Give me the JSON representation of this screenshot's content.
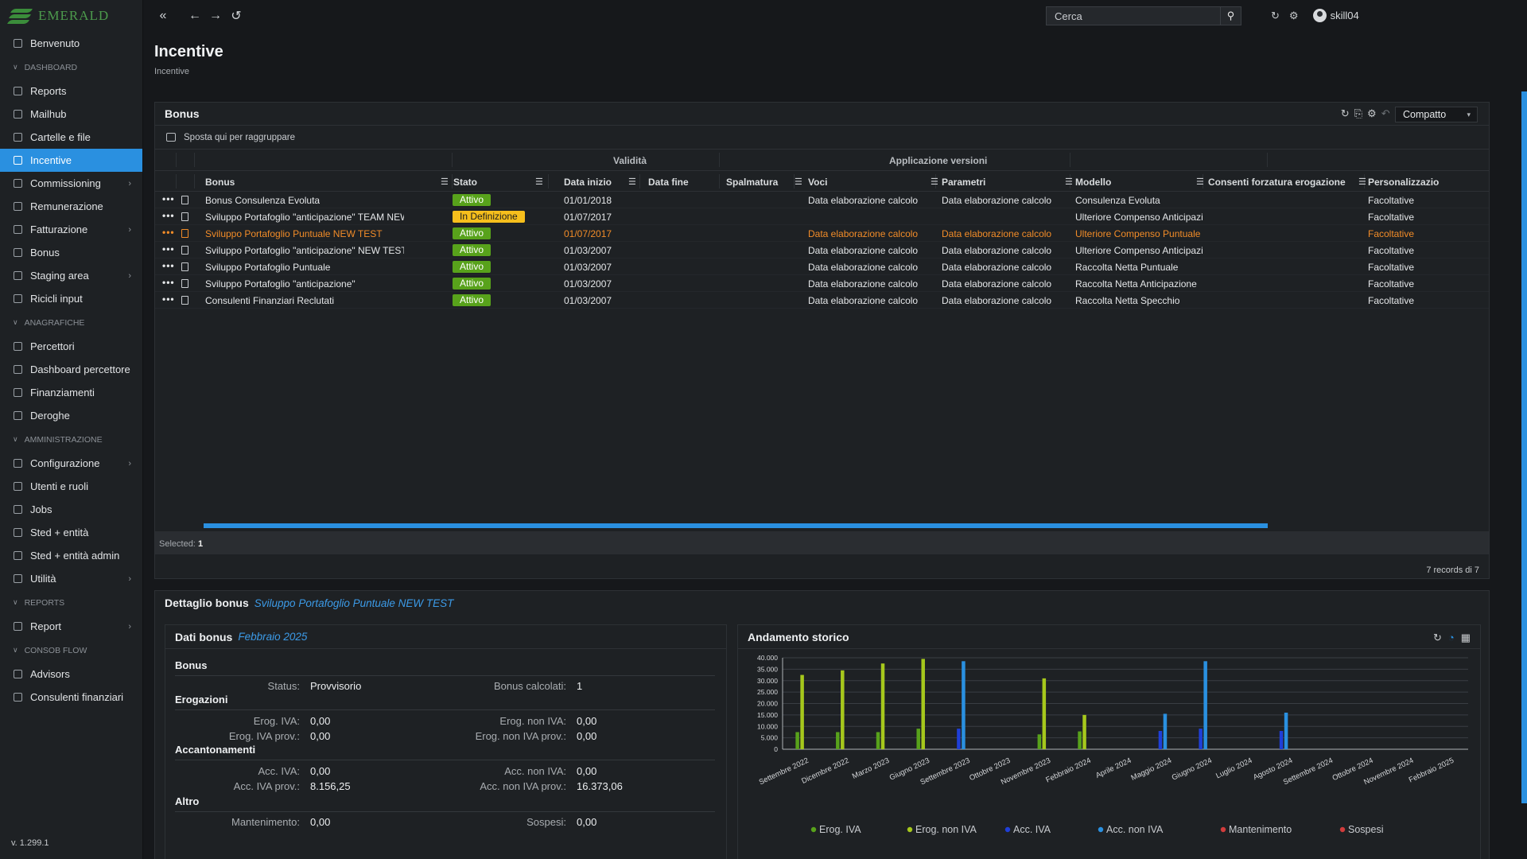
{
  "app": {
    "logo_text": "EMERALD",
    "version": "v. 1.299.1"
  },
  "topbar": {
    "search_placeholder": "Cerca",
    "user": "skill04"
  },
  "sidebar": {
    "items": [
      {
        "label": "Benvenuto",
        "icon": "dashboard-icon",
        "type": "item"
      },
      {
        "label": "DASHBOARD",
        "type": "section"
      },
      {
        "label": "Reports",
        "icon": "report-icon",
        "type": "item"
      },
      {
        "label": "Mailhub",
        "icon": "mail-icon",
        "type": "item"
      },
      {
        "label": "Cartelle e file",
        "icon": "folder-icon",
        "type": "item"
      },
      {
        "label": "Incentive",
        "icon": "incentive-icon",
        "type": "item",
        "active": true
      },
      {
        "label": "Commissioning",
        "icon": "commissioning-icon",
        "type": "item",
        "arrow": true
      },
      {
        "label": "Remunerazione",
        "icon": "money-icon",
        "type": "item"
      },
      {
        "label": "Fatturazione",
        "icon": "invoice-icon",
        "type": "item",
        "arrow": true
      },
      {
        "label": "Bonus",
        "icon": "bonus-icon",
        "type": "item"
      },
      {
        "label": "Staging area",
        "icon": "staging-icon",
        "type": "item",
        "arrow": true
      },
      {
        "label": "Ricicli input",
        "icon": "list-icon",
        "type": "item"
      },
      {
        "label": "ANAGRAFICHE",
        "type": "section"
      },
      {
        "label": "Percettori",
        "icon": "users-icon",
        "type": "item"
      },
      {
        "label": "Dashboard percettore",
        "icon": "users-icon",
        "type": "item"
      },
      {
        "label": "Finanziamenti",
        "icon": "finance-icon",
        "type": "item"
      },
      {
        "label": "Deroghe",
        "icon": "user-icon",
        "type": "item"
      },
      {
        "label": "AMMINISTRAZIONE",
        "type": "section"
      },
      {
        "label": "Configurazione",
        "icon": "wrench-icon",
        "type": "item",
        "arrow": true
      },
      {
        "label": "Utenti e ruoli",
        "icon": "user-icon",
        "type": "item"
      },
      {
        "label": "Jobs",
        "icon": "jobs-icon",
        "type": "item"
      },
      {
        "label": "Sted + entità",
        "icon": "database-icon",
        "type": "item"
      },
      {
        "label": "Sted + entità admin",
        "icon": "database-icon",
        "type": "item"
      },
      {
        "label": "Utilità",
        "icon": "file-icon",
        "type": "item",
        "arrow": true
      },
      {
        "label": "REPORTS",
        "type": "section"
      },
      {
        "label": "Report",
        "icon": "report-icon",
        "type": "item",
        "arrow": true
      },
      {
        "label": "CONSOB FLOW",
        "type": "section"
      },
      {
        "label": "Advisors",
        "icon": "double-chevron-icon",
        "type": "item"
      },
      {
        "label": "Consulenti finanziari",
        "icon": "double-chevron-icon",
        "type": "item"
      }
    ]
  },
  "page": {
    "title": "Incentive",
    "breadcrumb": "Incentive"
  },
  "bonus_panel": {
    "title": "Bonus",
    "view_mode": "Compatto",
    "group_hint": "Sposta qui per raggruppare",
    "column_groups": [
      "Validità",
      "Applicazione versioni"
    ],
    "columns": [
      "Bonus",
      "Stato",
      "Data inizio",
      "Data fine",
      "Spalmatura",
      "Voci",
      "Parametri",
      "Modello",
      "Consenti forzatura erogazione",
      "Personalizzazio"
    ],
    "rows": [
      {
        "bonus": "Bonus Consulenza Evoluta",
        "stato": "Attivo",
        "data_inizio": "01/01/2018",
        "voci": "Data elaborazione calcolo",
        "parametri": "Data elaborazione calcolo",
        "modello": "Consulenza Evoluta",
        "personalizzazione": "Facoltative"
      },
      {
        "bonus": "Sviluppo Portafoglio \"anticipazione\" TEAM NEW TEST",
        "stato": "In Definizione",
        "data_inizio": "01/07/2017",
        "voci": "",
        "parametri": "",
        "modello": "Ulteriore Compenso Anticipazione Team",
        "personalizzazione": "Facoltative"
      },
      {
        "bonus": "Sviluppo Portafoglio Puntuale NEW TEST",
        "stato": "Attivo",
        "data_inizio": "01/07/2017",
        "voci": "Data elaborazione calcolo",
        "parametri": "Data elaborazione calcolo",
        "modello": "Ulteriore Compenso Puntuale",
        "personalizzazione": "Facoltative",
        "selected": true
      },
      {
        "bonus": "Sviluppo Portafoglio \"anticipazione\" NEW TEST",
        "stato": "Attivo",
        "data_inizio": "01/03/2007",
        "voci": "Data elaborazione calcolo",
        "parametri": "Data elaborazione calcolo",
        "modello": "Ulteriore Compenso Anticipazione",
        "personalizzazione": "Facoltative"
      },
      {
        "bonus": "Sviluppo Portafoglio Puntuale",
        "stato": "Attivo",
        "data_inizio": "01/03/2007",
        "voci": "Data elaborazione calcolo",
        "parametri": "Data elaborazione calcolo",
        "modello": "Raccolta Netta Puntuale",
        "personalizzazione": "Facoltative"
      },
      {
        "bonus": "Sviluppo Portafoglio \"anticipazione\"",
        "stato": "Attivo",
        "data_inizio": "01/03/2007",
        "voci": "Data elaborazione calcolo",
        "parametri": "Data elaborazione calcolo",
        "modello": "Raccolta Netta Anticipazione",
        "personalizzazione": "Facoltative"
      },
      {
        "bonus": "Consulenti Finanziari Reclutati",
        "stato": "Attivo",
        "data_inizio": "01/03/2007",
        "voci": "Data elaborazione calcolo",
        "parametri": "Data elaborazione calcolo",
        "modello": "Raccolta Netta Specchio",
        "personalizzazione": "Facoltative"
      }
    ],
    "selected_label": "Selected:",
    "selected_count": "1",
    "records": "7 records di 7"
  },
  "detail": {
    "title": "Dettaglio bonus",
    "selected_bonus": "Sviluppo Portafoglio Puntuale NEW TEST",
    "dati": {
      "title": "Dati bonus",
      "period": "Febbraio 2025",
      "sections": {
        "bonus": "Bonus",
        "erogazioni": "Erogazioni",
        "accantonamenti": "Accantonamenti",
        "altro": "Altro"
      },
      "status_label": "Status:",
      "status": "Provvisorio",
      "calc_label": "Bonus calcolati:",
      "calc": "1",
      "erog_iva_label": "Erog. IVA:",
      "erog_iva": "0,00",
      "erog_noniva_label": "Erog. non IVA:",
      "erog_noniva": "0,00",
      "erog_iva_prov_label": "Erog. IVA prov.:",
      "erog_iva_prov": "0,00",
      "erog_noniva_prov_label": "Erog. non IVA prov.:",
      "erog_noniva_prov": "0,00",
      "acc_iva_label": "Acc. IVA:",
      "acc_iva": "0,00",
      "acc_noniva_label": "Acc. non IVA:",
      "acc_noniva": "0,00",
      "acc_iva_prov_label": "Acc. IVA prov.:",
      "acc_iva_prov": "8.156,25",
      "acc_noniva_prov_label": "Acc. non IVA prov.:",
      "acc_noniva_prov": "16.373,06",
      "mant_label": "Mantenimento:",
      "mant": "0,00",
      "sospesi_label": "Sospesi:",
      "sospesi": "0,00"
    },
    "chart_title": "Andamento storico"
  },
  "chart_data": {
    "type": "bar",
    "title": "Andamento storico",
    "categories": [
      "Settembre 2022",
      "Dicembre 2022",
      "Marzo 2023",
      "Giugno 2023",
      "Settembre 2023",
      "Ottobre 2023",
      "Novembre 2023",
      "Febbraio 2024",
      "Aprile 2024",
      "Maggio 2024",
      "Giugno 2024",
      "Luglio 2024",
      "Agosto 2024",
      "Settembre 2024",
      "Ottobre 2024",
      "Novembre 2024",
      "Febbraio 2025"
    ],
    "ylim": [
      0,
      40000
    ],
    "yticks": [
      "40.000",
      "35.000",
      "30.000",
      "25.000",
      "20.000",
      "15.000",
      "10.000",
      "5.000",
      "0"
    ],
    "series": [
      {
        "name": "Erog. IVA",
        "color": "#58a21b",
        "values": [
          7500,
          7500,
          7500,
          9000,
          0,
          0,
          6500,
          7800,
          0,
          0,
          0,
          0,
          0,
          0,
          0,
          0,
          0
        ]
      },
      {
        "name": "Erog. non IVA",
        "color": "#a6c81c",
        "values": [
          32500,
          34500,
          37500,
          39500,
          0,
          0,
          31000,
          15000,
          0,
          0,
          0,
          0,
          0,
          0,
          0,
          0,
          0
        ]
      },
      {
        "name": "Acc. IVA",
        "color": "#1f3fd8",
        "values": [
          0,
          0,
          0,
          0,
          9000,
          0,
          0,
          0,
          0,
          8000,
          9000,
          0,
          8000,
          0,
          0,
          0,
          0
        ]
      },
      {
        "name": "Acc. non IVA",
        "color": "#2a90e0",
        "values": [
          0,
          0,
          0,
          0,
          38500,
          0,
          0,
          0,
          0,
          15500,
          38500,
          0,
          16000,
          0,
          0,
          0,
          0
        ]
      },
      {
        "name": "Mantenimento",
        "color": "#d13c3c",
        "values": [
          0,
          0,
          0,
          0,
          0,
          0,
          0,
          0,
          0,
          0,
          0,
          0,
          0,
          0,
          0,
          0,
          0
        ]
      },
      {
        "name": "Sospesi",
        "color": "#d13c3c",
        "values": [
          0,
          0,
          0,
          0,
          0,
          0,
          0,
          0,
          0,
          0,
          0,
          0,
          0,
          0,
          0,
          0,
          0
        ]
      }
    ],
    "legend": "bottom",
    "grid": true
  }
}
